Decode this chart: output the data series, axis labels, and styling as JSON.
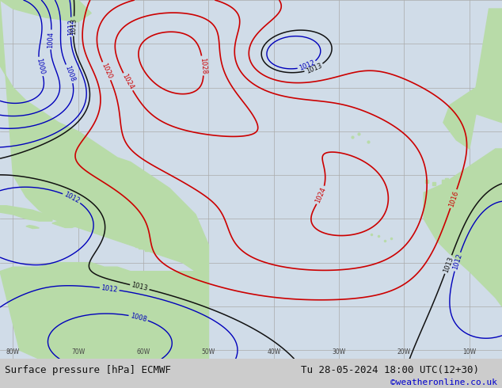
{
  "title": "Surface pressure [hPa] ECMWF",
  "date_label": "Tu 28-05-2024 18:00 UTC(12+30)",
  "copyright": "©weatheronline.co.uk",
  "figsize": [
    6.34,
    4.9
  ],
  "dpi": 100,
  "land_color": "#b8dba8",
  "ocean_color": "#d0dce8",
  "grid_color": "#aaaaaa",
  "bottom_bar_color": "#cccccc",
  "bottom_bar_height": 0.075,
  "title_color": "#111111",
  "title_fontsize": 9,
  "date_fontsize": 9,
  "copyright_fontsize": 8,
  "copyright_color": "#0000cc",
  "red_color": "#cc0000",
  "black_color": "#111111",
  "blue_color": "#0000bb",
  "gray_color": "#888888",
  "lon_min": -82,
  "lon_max": -5,
  "lat_min": -12,
  "lat_max": 70
}
